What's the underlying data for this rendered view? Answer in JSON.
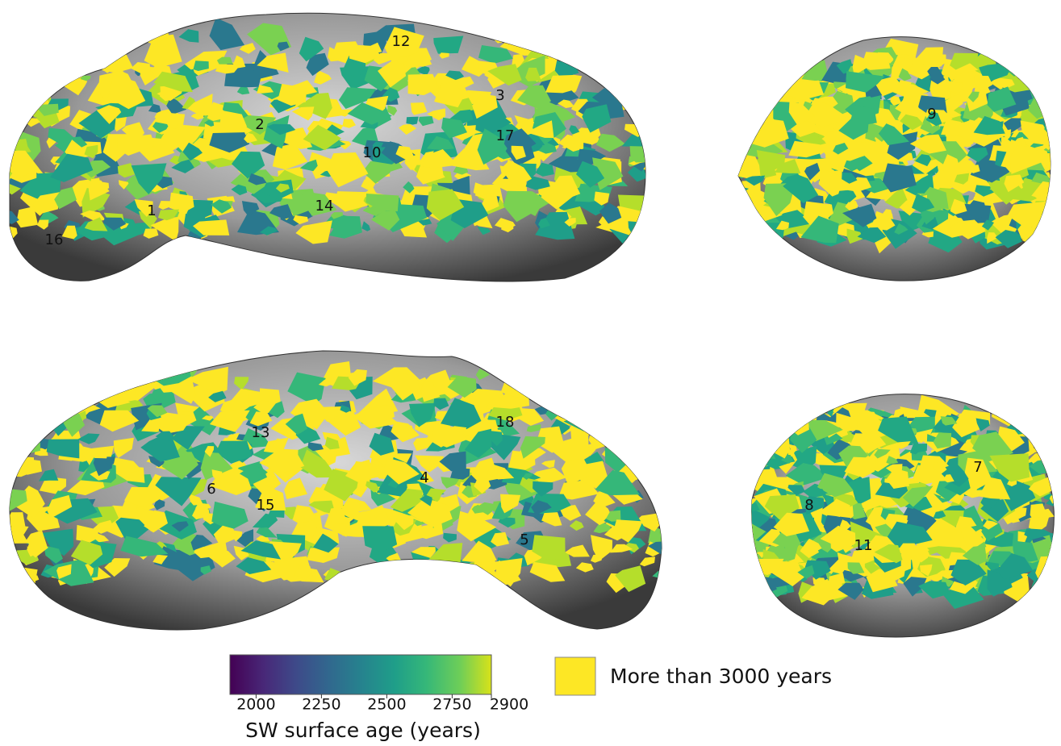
{
  "figure": {
    "region_labels": [
      "1",
      "2",
      "3",
      "4",
      "5",
      "6",
      "7",
      "8",
      "9",
      "10",
      "11",
      "12",
      "13",
      "14",
      "15",
      "16",
      "17",
      "18"
    ],
    "colorbar": {
      "label": "SW surface age (years)",
      "range": [
        1900,
        2900
      ],
      "ticks": [
        2000,
        2250,
        2500,
        2750,
        2900
      ]
    },
    "legend": {
      "label": "More than 3000 years",
      "color": "#fde725"
    }
  }
}
